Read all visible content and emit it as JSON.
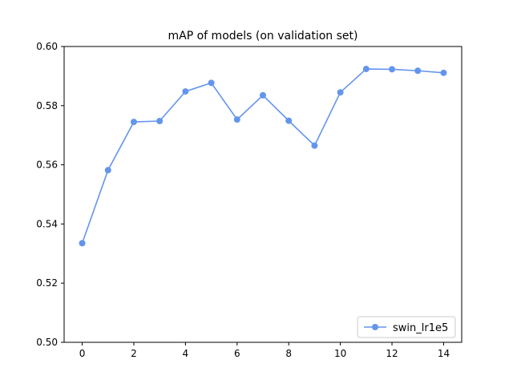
{
  "chart_data": {
    "type": "line",
    "title": "mAP of models (on validation set)",
    "xlabel": "",
    "ylabel": "",
    "xlim": [
      -0.7,
      14.7
    ],
    "ylim": [
      0.5,
      0.6
    ],
    "xticks": [
      0,
      2,
      4,
      6,
      8,
      10,
      12,
      14
    ],
    "yticks": [
      0.5,
      0.52,
      0.54,
      0.56,
      0.58,
      0.6
    ],
    "ytick_labels": [
      "0.50",
      "0.52",
      "0.54",
      "0.56",
      "0.58",
      "0.60"
    ],
    "grid": false,
    "legend_position": "lower-right",
    "series": [
      {
        "name": "swin_lr1e5",
        "color": "#6495ED",
        "marker": "circle",
        "x": [
          0,
          1,
          2,
          3,
          4,
          5,
          6,
          7,
          8,
          9,
          10,
          11,
          12,
          13,
          14
        ],
        "y": [
          0.5335,
          0.5582,
          0.5745,
          0.5748,
          0.5848,
          0.5877,
          0.5753,
          0.5835,
          0.5749,
          0.5665,
          0.5845,
          0.5924,
          0.5923,
          0.5918,
          0.5911
        ]
      }
    ]
  }
}
